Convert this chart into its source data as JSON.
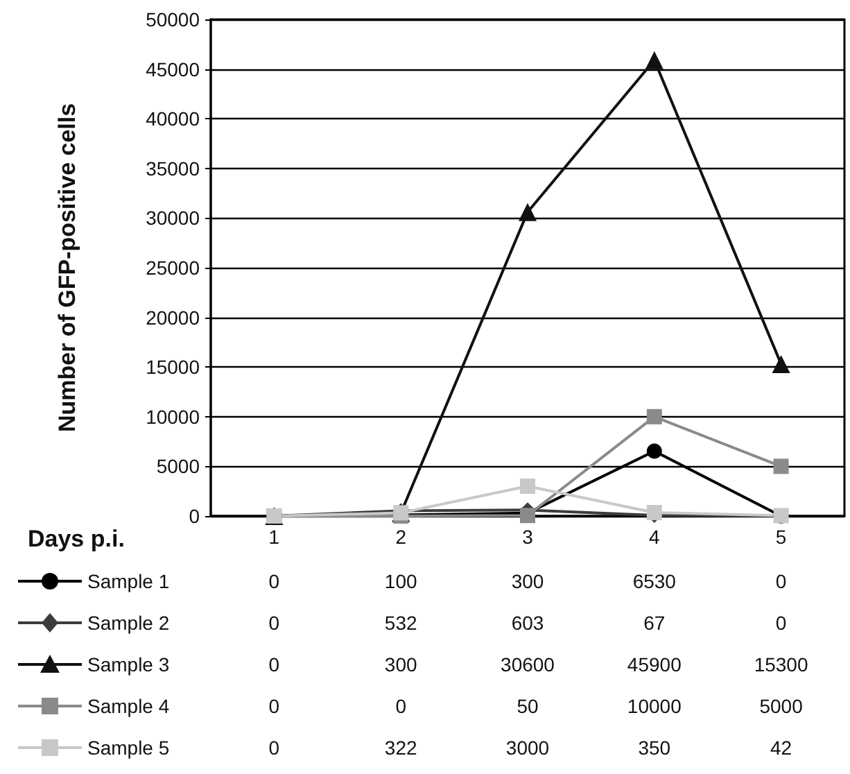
{
  "chart_data": {
    "type": "line",
    "xlabel": "Days p.i.",
    "ylabel": "Number of GFP-positive cells",
    "categories": [
      "1",
      "2",
      "3",
      "4",
      "5"
    ],
    "series": [
      {
        "name": "Sample 1",
        "color": "#000000",
        "marker": "circle",
        "values": [
          0,
          100,
          300,
          6530,
          0
        ]
      },
      {
        "name": "Sample 2",
        "color": "#3c3c3c",
        "marker": "diamond",
        "values": [
          0,
          532,
          603,
          67,
          0
        ]
      },
      {
        "name": "Sample 3",
        "color": "#111111",
        "marker": "triangle",
        "values": [
          0,
          300,
          30600,
          45900,
          15300
        ]
      },
      {
        "name": "Sample 4",
        "color": "#8a8a8a",
        "marker": "square",
        "values": [
          0,
          0,
          50,
          10000,
          5000
        ]
      },
      {
        "name": "Sample 5",
        "color": "#c8c8c8",
        "marker": "square",
        "values": [
          0,
          322,
          3000,
          350,
          42
        ]
      }
    ],
    "ylim": [
      0,
      50000
    ],
    "yticks": [
      0,
      5000,
      10000,
      15000,
      20000,
      25000,
      30000,
      35000,
      40000,
      45000,
      50000
    ],
    "grid": "y",
    "legend": "bottom",
    "data_labels": true,
    "line_style": "solid"
  }
}
